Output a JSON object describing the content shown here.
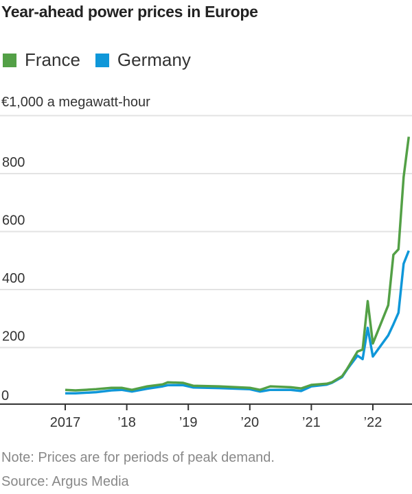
{
  "chart_data": {
    "type": "line",
    "title": "Year-ahead power prices in Europe",
    "ylabel": "€1,000 a megawatt-hour",
    "ylim": [
      0,
      1000
    ],
    "yticks": [
      0,
      200,
      400,
      600,
      800,
      1000
    ],
    "ytick_labels": [
      "0",
      "200",
      "400",
      "600",
      "800",
      "€1,000 a megawatt-hour"
    ],
    "xticks": [
      "2017-01",
      "2018-01",
      "2019-01",
      "2020-01",
      "2021-01",
      "2022-01"
    ],
    "xtick_labels": [
      "2017",
      "’18",
      "’19",
      "’20",
      "’21",
      "’22"
    ],
    "grid": true,
    "legend_position": "top-left",
    "x": [
      "2017-01",
      "2017-03",
      "2017-07",
      "2017-10",
      "2017-12",
      "2018-02",
      "2018-05",
      "2018-08",
      "2018-09",
      "2018-12",
      "2019-02",
      "2019-07",
      "2020-01",
      "2020-03",
      "2020-05",
      "2020-09",
      "2020-11",
      "2021-01",
      "2021-04",
      "2021-05",
      "2021-07",
      "2021-08",
      "2021-10",
      "2021-11",
      "2021-12",
      "2022-01",
      "2022-04",
      "2022-05",
      "2022-06",
      "2022-07",
      "2022-08"
    ],
    "series": [
      {
        "name": "France",
        "color": "#53a046",
        "values": [
          54,
          52,
          56,
          61,
          61,
          54,
          66,
          73,
          80,
          78,
          68,
          66,
          61,
          54,
          66,
          63,
          59,
          71,
          75,
          80,
          101,
          127,
          186,
          193,
          360,
          214,
          346,
          520,
          539,
          788,
          927
        ]
      },
      {
        "name": "Germany",
        "color": "#0f97d9",
        "values": [
          42,
          42,
          46,
          52,
          54,
          48,
          58,
          66,
          70,
          70,
          62,
          60,
          56,
          48,
          54,
          54,
          50,
          66,
          72,
          78,
          98,
          125,
          172,
          160,
          268,
          169,
          242,
          280,
          320,
          489,
          534
        ]
      }
    ]
  },
  "notes": {
    "note": "Note: Prices are for periods of peak demand.",
    "source": "Source: Argus Media"
  }
}
